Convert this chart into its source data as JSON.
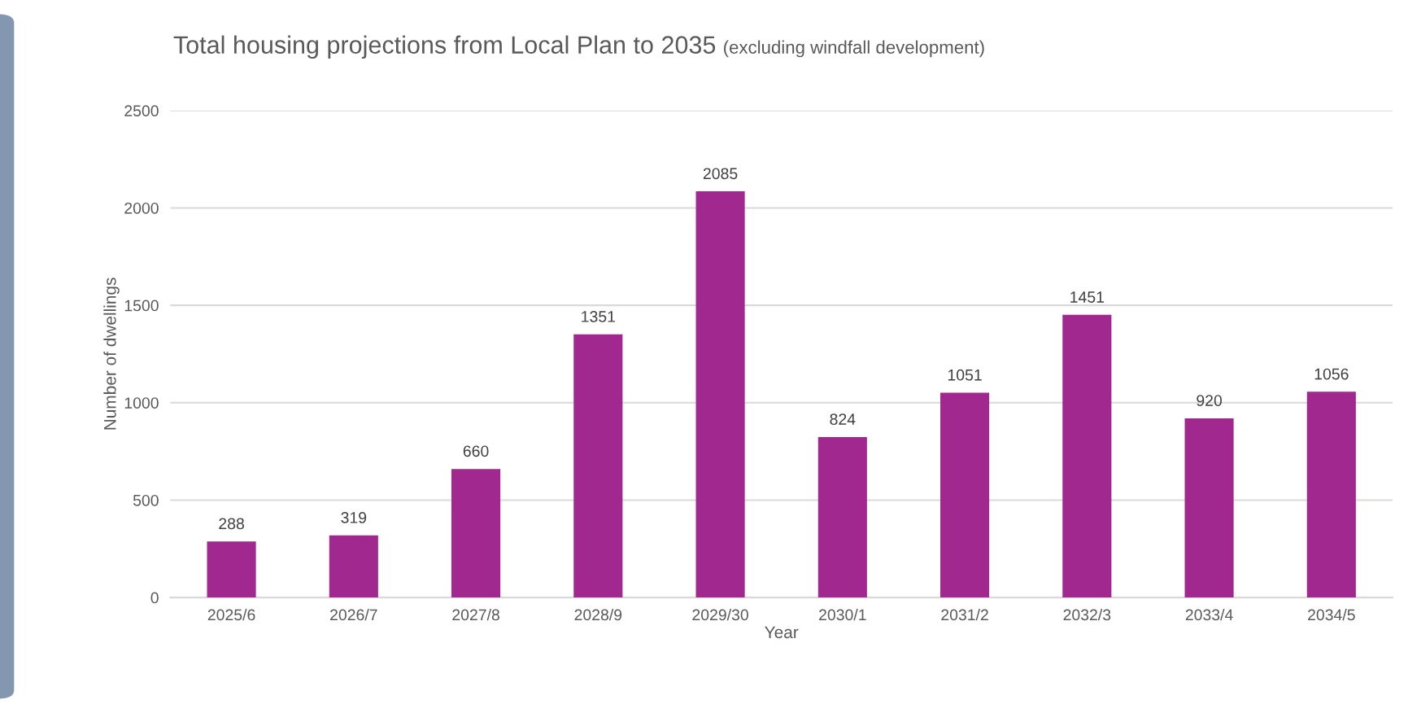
{
  "chart_data": {
    "type": "bar",
    "title": "Total housing projections from Local Plan to 2035",
    "subtitle": "(excluding windfall development)",
    "xlabel": "Year",
    "ylabel": "Number of dwellings",
    "categories": [
      "2025/6",
      "2026/7",
      "2027/8",
      "2028/9",
      "2029/30",
      "2030/1",
      "2031/2",
      "2032/3",
      "2033/4",
      "2034/5"
    ],
    "values": [
      288,
      319,
      660,
      1351,
      2085,
      824,
      1051,
      1451,
      920,
      1056
    ],
    "color": "#a0288e",
    "ylim": [
      0,
      2500
    ],
    "yticks": [
      0,
      500,
      1000,
      1500,
      2000,
      2500
    ],
    "grid": "y",
    "data_labels": true
  }
}
